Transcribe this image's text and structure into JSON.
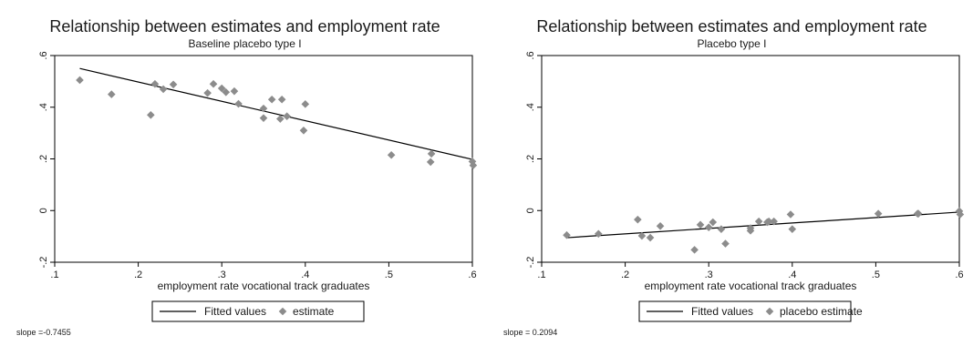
{
  "chart_data": [
    {
      "type": "scatter",
      "title": "Relationship between estimates and employment rate",
      "subtitle": "Baseline placebo type I",
      "xlabel": "employment rate vocational track graduates",
      "ylabel": "",
      "xlim": [
        0.1,
        0.6
      ],
      "ylim": [
        -0.2,
        0.6
      ],
      "xticks": [
        0.1,
        0.2,
        0.3,
        0.4,
        0.5,
        0.6
      ],
      "xtick_labels": [
        ".1",
        ".2",
        ".3",
        ".4",
        ".5",
        ".6"
      ],
      "yticks": [
        -0.2,
        0,
        0.2,
        0.4,
        0.6
      ],
      "ytick_labels": [
        "-.2",
        "0",
        ".2",
        ".4",
        ".6"
      ],
      "grid": false,
      "legend_position": "bottom",
      "fit_color": "#000000",
      "marker_color": "#8c8c8c",
      "series": [
        {
          "name": "Fitted values",
          "kind": "line",
          "x": [
            0.13,
            0.6
          ],
          "y": [
            0.55,
            0.198
          ]
        },
        {
          "name": "estimate",
          "kind": "scatter",
          "x": [
            0.13,
            0.168,
            0.215,
            0.22,
            0.23,
            0.242,
            0.283,
            0.29,
            0.3,
            0.305,
            0.315,
            0.32,
            0.35,
            0.35,
            0.36,
            0.37,
            0.372,
            0.378,
            0.398,
            0.4,
            0.503,
            0.55,
            0.551,
            0.6,
            0.601
          ],
          "y": [
            0.505,
            0.45,
            0.37,
            0.49,
            0.47,
            0.488,
            0.455,
            0.49,
            0.473,
            0.458,
            0.462,
            0.413,
            0.395,
            0.358,
            0.43,
            0.355,
            0.43,
            0.365,
            0.31,
            0.412,
            0.215,
            0.188,
            0.22,
            0.19,
            0.175
          ]
        }
      ],
      "note": "slope =-0.7455"
    },
    {
      "type": "scatter",
      "title": "Relationship between estimates and employment rate",
      "subtitle": "Placebo type I",
      "xlabel": "employment rate vocational track graduates",
      "ylabel": "",
      "xlim": [
        0.1,
        0.6
      ],
      "ylim": [
        -0.2,
        0.6
      ],
      "xticks": [
        0.1,
        0.2,
        0.3,
        0.4,
        0.5,
        0.6
      ],
      "xtick_labels": [
        ".1",
        ".2",
        ".3",
        ".4",
        ".5",
        ".6"
      ],
      "yticks": [
        -0.2,
        0,
        0.2,
        0.4,
        0.6
      ],
      "ytick_labels": [
        "-.2",
        "0",
        ".2",
        ".4",
        ".6"
      ],
      "grid": false,
      "legend_position": "bottom",
      "fit_color": "#000000",
      "marker_color": "#8c8c8c",
      "series": [
        {
          "name": "Fitted values",
          "kind": "line",
          "x": [
            0.13,
            0.6
          ],
          "y": [
            -0.105,
            -0.006
          ]
        },
        {
          "name": "placebo estimate",
          "kind": "scatter",
          "x": [
            0.13,
            0.168,
            0.215,
            0.22,
            0.23,
            0.242,
            0.283,
            0.29,
            0.3,
            0.305,
            0.315,
            0.32,
            0.35,
            0.35,
            0.36,
            0.37,
            0.372,
            0.378,
            0.398,
            0.4,
            0.503,
            0.55,
            0.551,
            0.6,
            0.601
          ],
          "y": [
            -0.095,
            -0.09,
            -0.035,
            -0.098,
            -0.105,
            -0.06,
            -0.152,
            -0.055,
            -0.065,
            -0.045,
            -0.072,
            -0.128,
            -0.068,
            -0.078,
            -0.042,
            -0.045,
            -0.042,
            -0.042,
            -0.015,
            -0.072,
            -0.012,
            -0.012,
            -0.012,
            -0.002,
            -0.015
          ]
        }
      ],
      "note": "slope = 0.2094"
    }
  ]
}
